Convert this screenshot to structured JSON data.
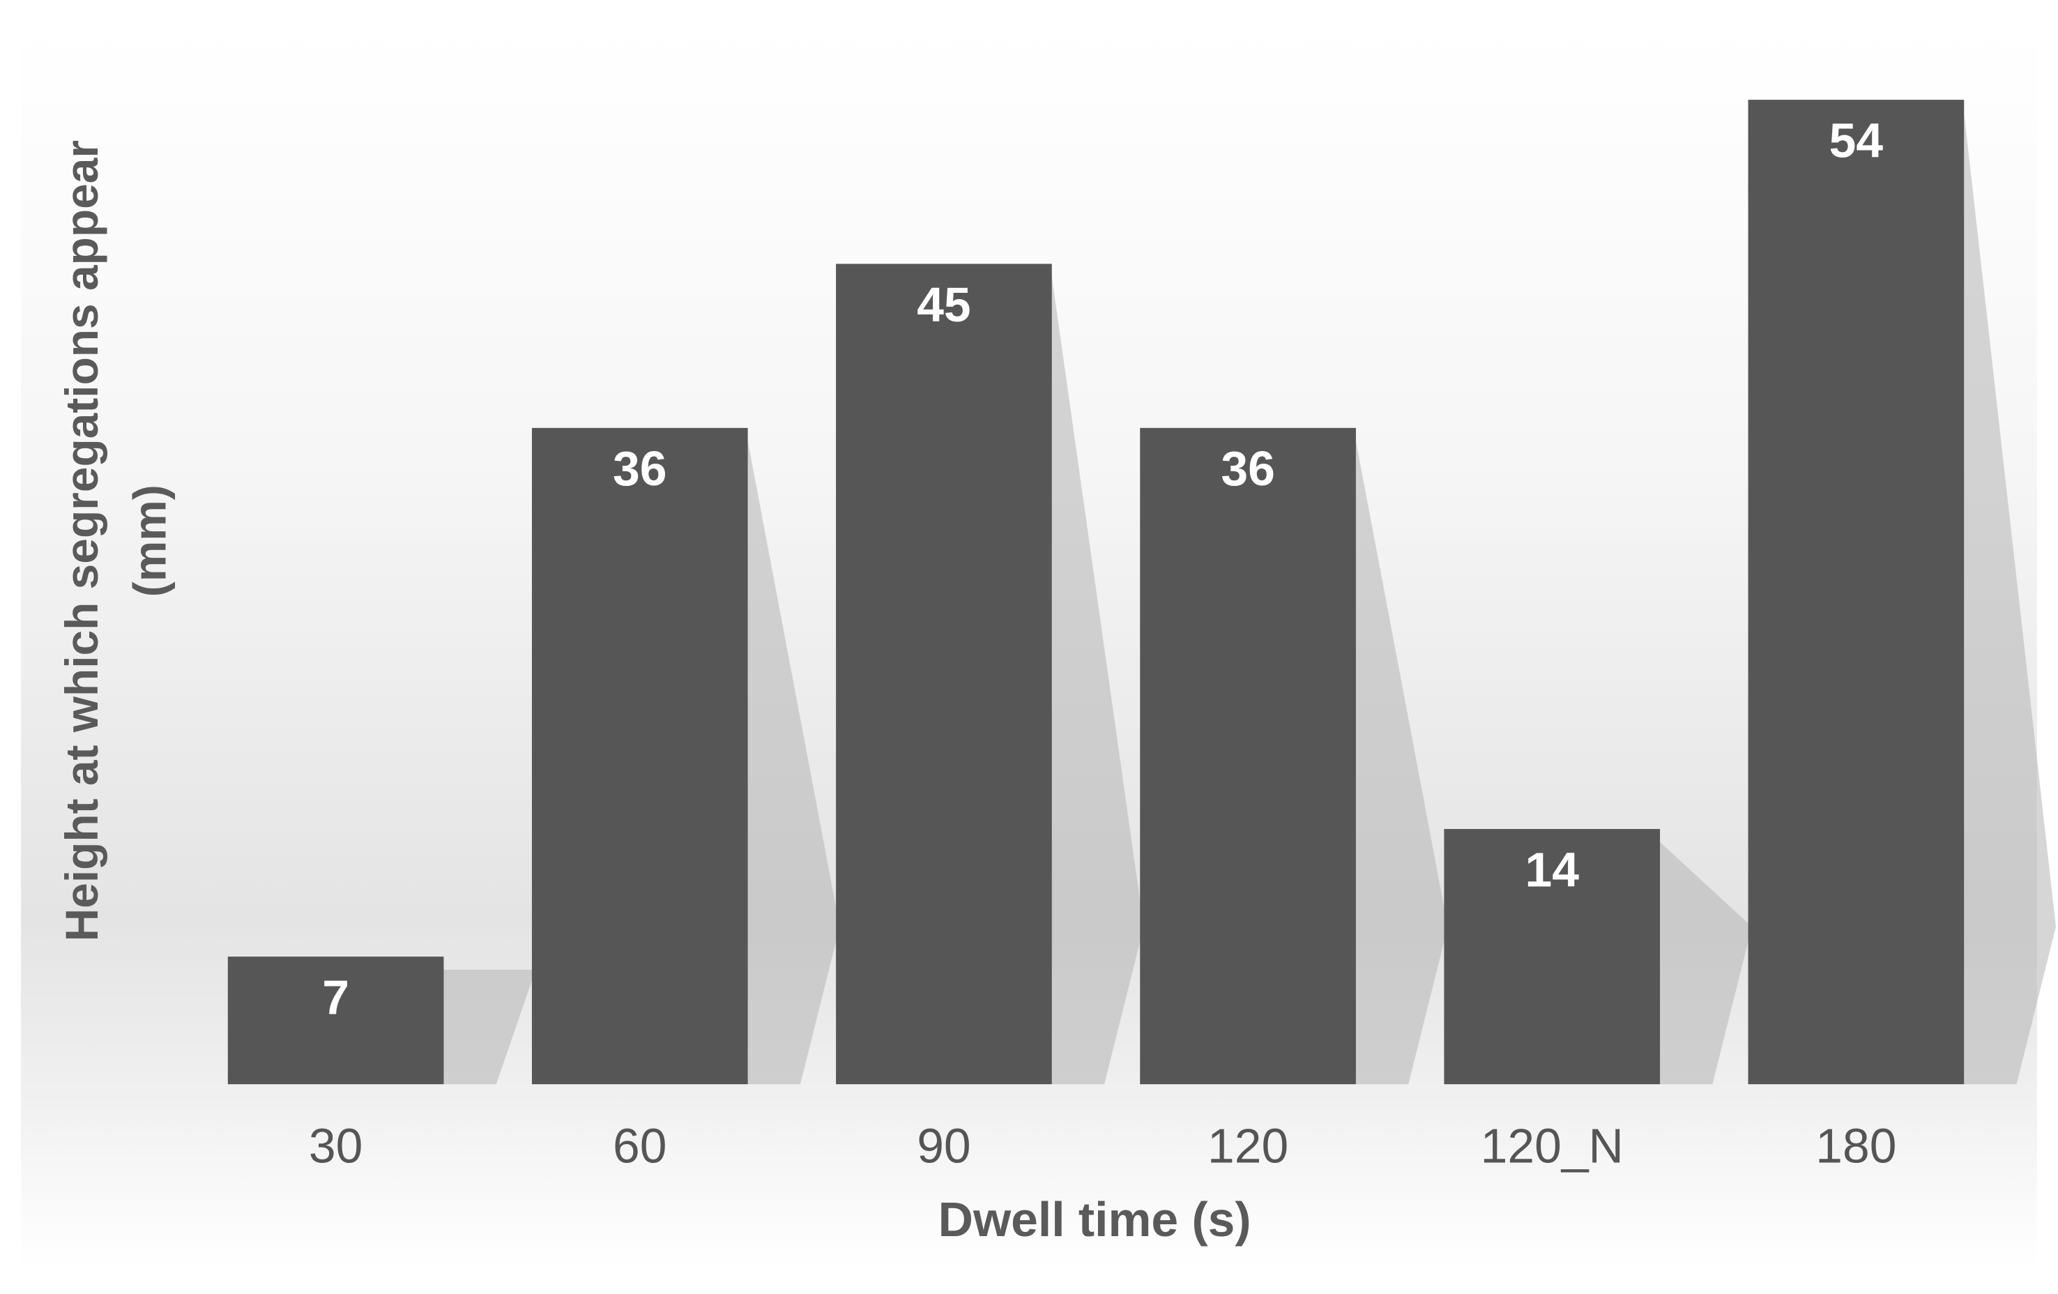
{
  "chart_data": {
    "type": "bar",
    "y_label": [
      "Height at which segregations appear",
      "(mm)"
    ],
    "x_label": "Dwell time (s)",
    "categories": [
      "30",
      "60",
      "90",
      "120",
      "120_N",
      "180"
    ],
    "values": [
      7,
      36,
      45,
      36,
      14,
      54
    ],
    "color": "#565656"
  }
}
